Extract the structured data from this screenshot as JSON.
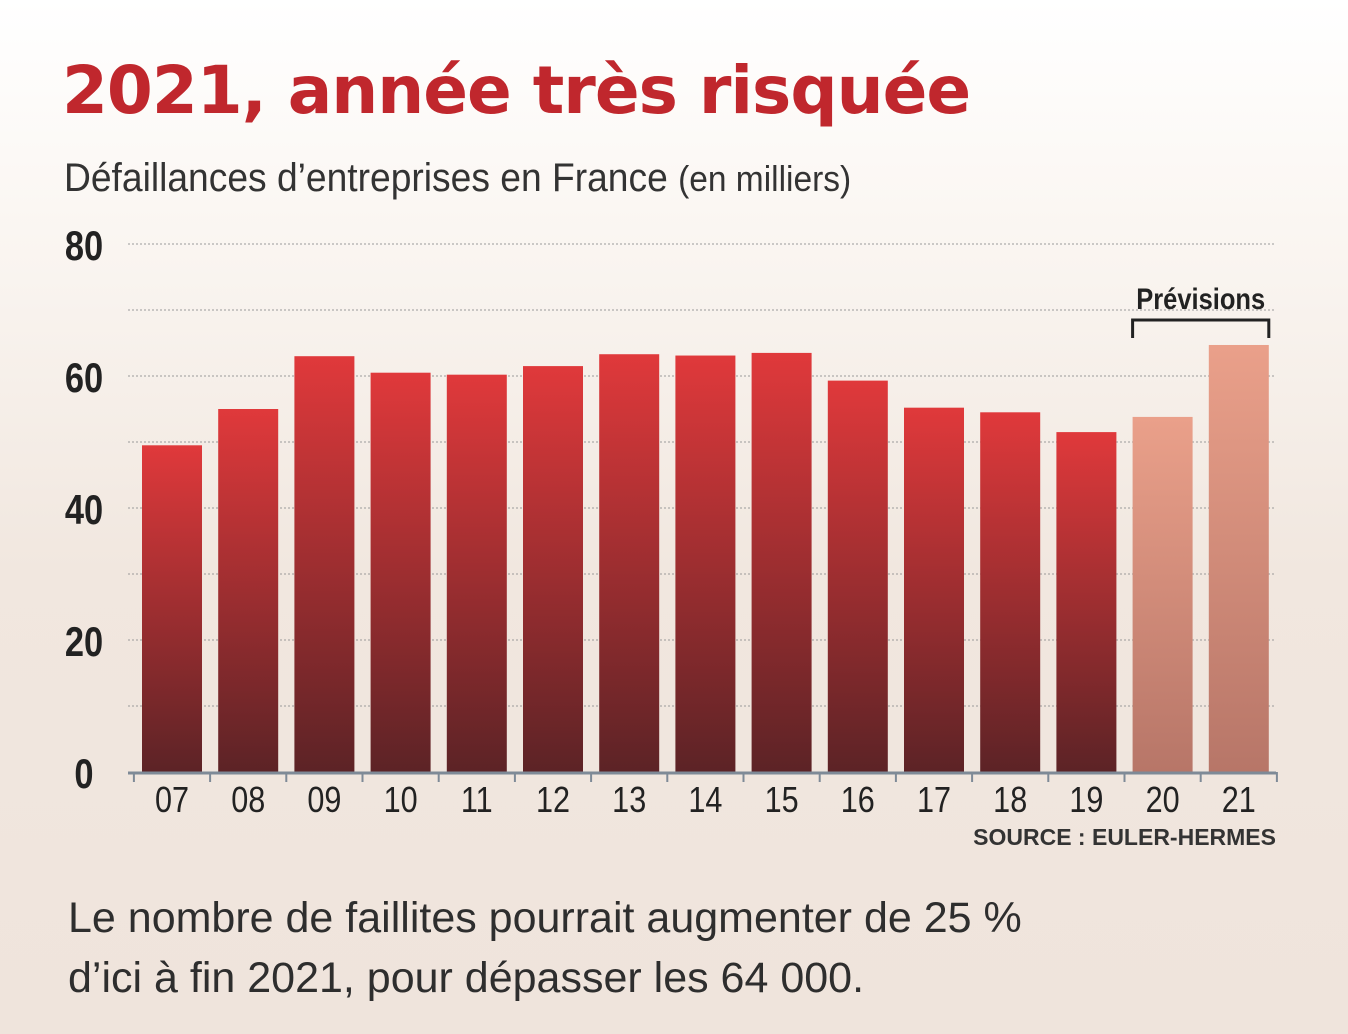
{
  "title": "2021, année très risquée",
  "subtitle": {
    "main": "Défaillances d’entreprises en France",
    "unit": "(en milliers)"
  },
  "source": "SOURCE : EULER-HERMES",
  "forecast_label": "Prévisions",
  "footnote": {
    "line1": "Le nombre de faillites pourrait augmenter de 25 %",
    "line2": "d’ici à fin 2021, pour dépasser les 64 000."
  },
  "colors": {
    "title": "#c0272d",
    "bar_top": "#e0393b",
    "bar_bottom": "#5c2326",
    "forecast_top": "#eaa08a",
    "forecast_bottom": "#b77668"
  },
  "chart_data": {
    "type": "bar",
    "categories": [
      "07",
      "08",
      "09",
      "10",
      "11",
      "12",
      "13",
      "14",
      "15",
      "16",
      "17",
      "18",
      "19",
      "20",
      "21"
    ],
    "values": [
      49.5,
      55,
      63,
      60.5,
      60.2,
      61.5,
      63.3,
      63.1,
      63.5,
      59.3,
      55.2,
      54.5,
      51.5,
      53.8,
      64.7
    ],
    "forecast_categories": [
      "20",
      "21"
    ],
    "ylim": [
      0,
      80
    ],
    "yticks": [
      0,
      20,
      40,
      60,
      80
    ],
    "grid": true
  }
}
